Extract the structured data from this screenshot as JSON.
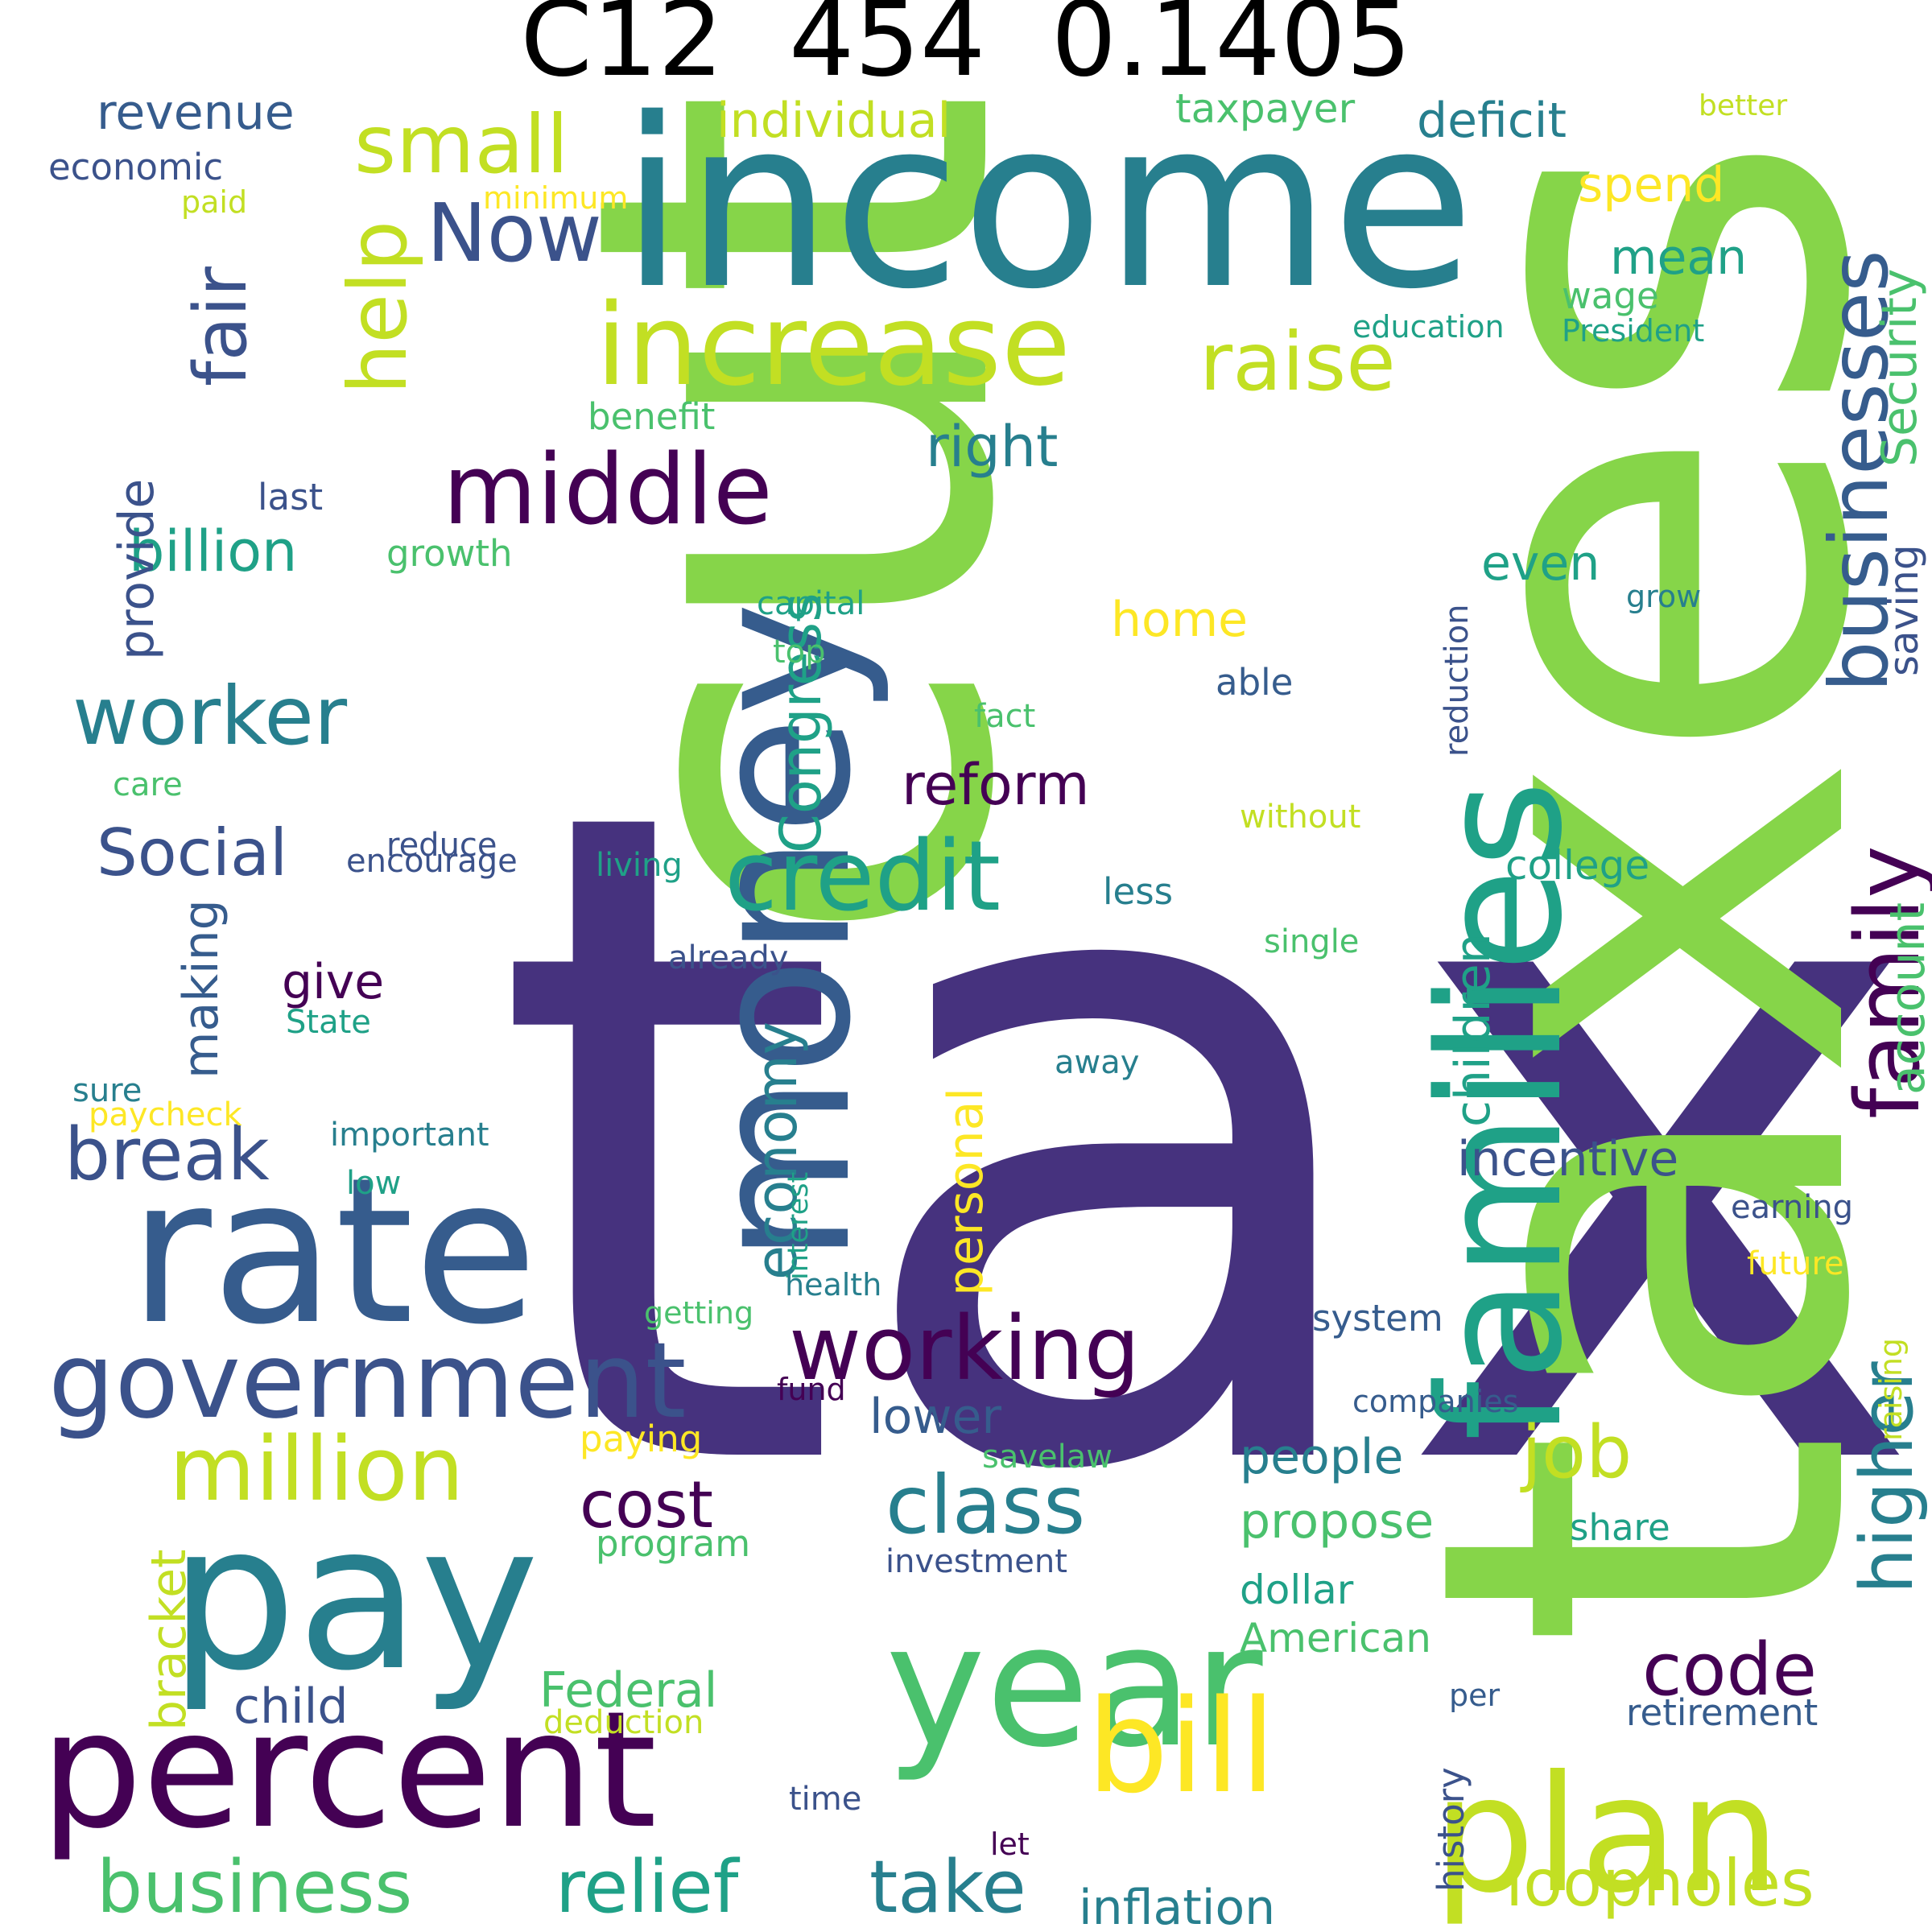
{
  "title": "C12  454  0.1405",
  "palette": {
    "indigo": "#46327e",
    "purple": "#440154",
    "slate": "#365c8d",
    "teal": "#277f8e",
    "seagreen": "#1fa187",
    "green": "#4ac16d",
    "lime": "#86d549",
    "yellowgreen": "#c2df23",
    "yellow": "#fde725",
    "deepblue": "#3b528b"
  },
  "words": [
    {
      "text": "tax",
      "color": "indigo"
    },
    {
      "text": "taxes",
      "color": "lime"
    },
    {
      "text": "cut",
      "color": "lime"
    },
    {
      "text": "income",
      "color": "teal"
    },
    {
      "text": "money",
      "color": "slate"
    },
    {
      "text": "families",
      "color": "seagreen"
    },
    {
      "text": "rate",
      "color": "slate"
    },
    {
      "text": "pay",
      "color": "teal"
    },
    {
      "text": "percent",
      "color": "purple"
    },
    {
      "text": "year",
      "color": "green"
    },
    {
      "text": "plan",
      "color": "yellowgreen"
    },
    {
      "text": "government",
      "color": "deepblue"
    },
    {
      "text": "increase",
      "color": "yellowgreen"
    },
    {
      "text": "credit",
      "color": "seagreen"
    },
    {
      "text": "middle",
      "color": "purple"
    },
    {
      "text": "working",
      "color": "purple"
    },
    {
      "text": "million",
      "color": "yellowgreen"
    },
    {
      "text": "bill",
      "color": "yellow"
    },
    {
      "text": "class",
      "color": "teal"
    },
    {
      "text": "family",
      "color": "purple"
    },
    {
      "text": "businesses",
      "color": "slate"
    },
    {
      "text": "raise",
      "color": "yellowgreen"
    },
    {
      "text": "small",
      "color": "yellowgreen"
    },
    {
      "text": "Now",
      "color": "deepblue"
    },
    {
      "text": "help",
      "color": "yellowgreen"
    },
    {
      "text": "fair",
      "color": "deepblue"
    },
    {
      "text": "worker",
      "color": "teal"
    },
    {
      "text": "relief",
      "color": "seagreen"
    },
    {
      "text": "take",
      "color": "teal"
    },
    {
      "text": "business",
      "color": "green"
    },
    {
      "text": "loopholes",
      "color": "yellowgreen"
    },
    {
      "text": "code",
      "color": "purple"
    },
    {
      "text": "job",
      "color": "yellowgreen"
    },
    {
      "text": "higher",
      "color": "teal"
    },
    {
      "text": "break",
      "color": "deepblue"
    },
    {
      "text": "Social",
      "color": "deepblue"
    },
    {
      "text": "cost",
      "color": "purple"
    },
    {
      "text": "right",
      "color": "teal"
    },
    {
      "text": "reform",
      "color": "purple"
    },
    {
      "text": "billion",
      "color": "seagreen"
    },
    {
      "text": "Congress",
      "color": "seagreen"
    },
    {
      "text": "economy",
      "color": "teal"
    },
    {
      "text": "Security",
      "color": "green"
    },
    {
      "text": "revenue",
      "color": "slate"
    },
    {
      "text": "individual",
      "color": "yellowgreen"
    },
    {
      "text": "deficit",
      "color": "teal"
    },
    {
      "text": "spend",
      "color": "yellow"
    },
    {
      "text": "mean",
      "color": "seagreen"
    },
    {
      "text": "give",
      "color": "purple"
    },
    {
      "text": "home",
      "color": "yellow"
    },
    {
      "text": "even",
      "color": "seagreen"
    },
    {
      "text": "people",
      "color": "teal"
    },
    {
      "text": "propose",
      "color": "green"
    },
    {
      "text": "incentive",
      "color": "deepblue"
    },
    {
      "text": "Federal",
      "color": "green"
    },
    {
      "text": "inflation",
      "color": "teal"
    },
    {
      "text": "lower",
      "color": "slate"
    },
    {
      "text": "child",
      "color": "deepblue"
    },
    {
      "text": "provide",
      "color": "deepblue"
    },
    {
      "text": "account",
      "color": "green"
    },
    {
      "text": "children",
      "color": "seagreen"
    },
    {
      "text": "personal",
      "color": "yellow"
    },
    {
      "text": "making",
      "color": "slate"
    },
    {
      "text": "bracket",
      "color": "yellowgreen"
    },
    {
      "text": "saving",
      "color": "deepblue"
    },
    {
      "text": "college",
      "color": "seagreen"
    },
    {
      "text": "retirement",
      "color": "slate"
    },
    {
      "text": "dollar",
      "color": "seagreen"
    },
    {
      "text": "American",
      "color": "green"
    },
    {
      "text": "taxpayer",
      "color": "green"
    },
    {
      "text": "economic",
      "color": "deepblue"
    },
    {
      "text": "program",
      "color": "green"
    },
    {
      "text": "paying",
      "color": "yellow"
    },
    {
      "text": "system",
      "color": "slate"
    },
    {
      "text": "history",
      "color": "deepblue"
    },
    {
      "text": "reduction",
      "color": "deepblue"
    },
    {
      "text": "share",
      "color": "seagreen"
    },
    {
      "text": "wage",
      "color": "green"
    },
    {
      "text": "benefit",
      "color": "green"
    },
    {
      "text": "growth",
      "color": "green"
    },
    {
      "text": "last",
      "color": "deepblue"
    },
    {
      "text": "capital",
      "color": "seagreen"
    },
    {
      "text": "top",
      "color": "green"
    },
    {
      "text": "able",
      "color": "slate"
    },
    {
      "text": "fact",
      "color": "green"
    },
    {
      "text": "care",
      "color": "green"
    },
    {
      "text": "reduce",
      "color": "deepblue"
    },
    {
      "text": "encourage",
      "color": "deepblue"
    },
    {
      "text": "living",
      "color": "seagreen"
    },
    {
      "text": "less",
      "color": "teal"
    },
    {
      "text": "without",
      "color": "yellowgreen"
    },
    {
      "text": "already",
      "color": "deepblue"
    },
    {
      "text": "State",
      "color": "seagreen"
    },
    {
      "text": "single",
      "color": "green"
    },
    {
      "text": "away",
      "color": "teal"
    },
    {
      "text": "sure",
      "color": "teal"
    },
    {
      "text": "paycheck",
      "color": "yellow"
    },
    {
      "text": "important",
      "color": "teal"
    },
    {
      "text": "low",
      "color": "seagreen"
    },
    {
      "text": "interest",
      "color": "seagreen"
    },
    {
      "text": "health",
      "color": "teal"
    },
    {
      "text": "getting",
      "color": "green"
    },
    {
      "text": "fund",
      "color": "purple"
    },
    {
      "text": "savelaw",
      "color": "green"
    },
    {
      "text": "investment",
      "color": "deepblue"
    },
    {
      "text": "companies",
      "color": "slate"
    },
    {
      "text": "raising",
      "color": "yellowgreen"
    },
    {
      "text": "earning",
      "color": "deepblue"
    },
    {
      "text": "future",
      "color": "yellow"
    },
    {
      "text": "deduction",
      "color": "yellowgreen"
    },
    {
      "text": "per",
      "color": "slate"
    },
    {
      "text": "time",
      "color": "deepblue"
    },
    {
      "text": "let",
      "color": "purple"
    },
    {
      "text": "grow",
      "color": "teal"
    },
    {
      "text": "education",
      "color": "seagreen"
    },
    {
      "text": "President",
      "color": "seagreen"
    },
    {
      "text": "minimum",
      "color": "yellow"
    },
    {
      "text": "paid",
      "color": "yellowgreen"
    },
    {
      "text": "better",
      "color": "yellowgreen"
    }
  ]
}
